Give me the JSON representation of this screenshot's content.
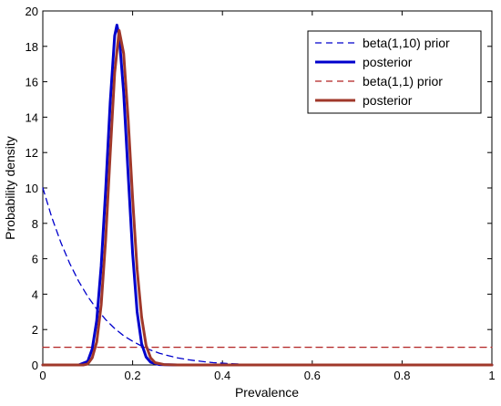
{
  "chart_data": {
    "type": "line",
    "title": "",
    "xlabel": "Prevalence",
    "ylabel": "Probability density",
    "xlim": [
      0,
      1
    ],
    "ylim": [
      0,
      20
    ],
    "x_ticks": [
      "0",
      "0.2",
      "0.4",
      "0.6",
      "0.8",
      "1"
    ],
    "y_ticks": [
      "0",
      "2",
      "4",
      "6",
      "8",
      "10",
      "12",
      "14",
      "16",
      "18",
      "20"
    ],
    "grid": false,
    "legend_position": "top-right",
    "series": [
      {
        "name": "beta(1,10) prior",
        "color": "#0000cc",
        "style": "dashed",
        "x": [
          0,
          0.02,
          0.04,
          0.06,
          0.08,
          0.1,
          0.12,
          0.14,
          0.16,
          0.18,
          0.2,
          0.22,
          0.24,
          0.26,
          0.28,
          0.3,
          0.32,
          0.34,
          0.36,
          0.38,
          0.4,
          0.42,
          0.44,
          0.46,
          0.5,
          0.6,
          0.7,
          0.8,
          0.9,
          1
        ],
        "values": [
          10,
          8.34,
          6.93,
          5.73,
          4.72,
          3.87,
          3.16,
          2.56,
          2.06,
          1.65,
          1.34,
          1.07,
          0.84,
          0.66,
          0.52,
          0.4,
          0.31,
          0.24,
          0.18,
          0.13,
          0.1,
          0.07,
          0.05,
          0.03,
          0.02,
          0.003,
          0,
          0,
          0,
          0
        ]
      },
      {
        "name": "posterior",
        "color": "#0000cc",
        "style": "solid",
        "x": [
          0,
          0.08,
          0.1,
          0.11,
          0.12,
          0.13,
          0.14,
          0.15,
          0.16,
          0.165,
          0.17,
          0.18,
          0.19,
          0.2,
          0.21,
          0.22,
          0.23,
          0.24,
          0.26,
          0.3,
          0.5,
          1
        ],
        "values": [
          0,
          0,
          0.2,
          0.9,
          2.5,
          5.6,
          9.9,
          14.8,
          18.6,
          19.2,
          18.6,
          15.4,
          10.8,
          6.3,
          3.0,
          1.2,
          0.45,
          0.15,
          0.02,
          0,
          0,
          0
        ]
      },
      {
        "name": "beta(1,1) prior",
        "color": "#b22222",
        "style": "dashed",
        "x": [
          0,
          1
        ],
        "values": [
          1,
          1
        ]
      },
      {
        "name": "posterior",
        "color": "#a0382a",
        "style": "solid",
        "x": [
          0,
          0.09,
          0.1,
          0.11,
          0.12,
          0.13,
          0.14,
          0.15,
          0.16,
          0.17,
          0.18,
          0.19,
          0.2,
          0.21,
          0.22,
          0.23,
          0.24,
          0.25,
          0.27,
          0.3,
          0.5,
          1
        ],
        "values": [
          0,
          0,
          0.05,
          0.4,
          1.3,
          3.4,
          7.1,
          11.9,
          16.5,
          18.9,
          17.6,
          13.9,
          9.4,
          5.4,
          2.7,
          1.1,
          0.4,
          0.13,
          0.02,
          0,
          0,
          0
        ]
      }
    ]
  }
}
